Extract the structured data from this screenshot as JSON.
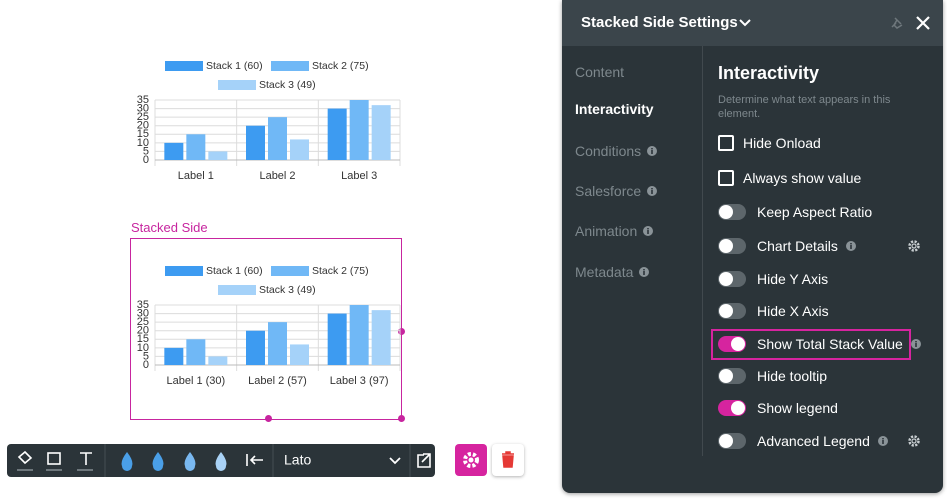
{
  "charts": [
    {
      "type": "bar",
      "categories": [
        "Label 1",
        "Label 2",
        "Label 3"
      ],
      "series": [
        {
          "name": "Stack 1 (60)",
          "color": "#3d9bf1",
          "values": [
            10,
            20,
            30
          ]
        },
        {
          "name": "Stack 2 (75)",
          "color": "#70b8f6",
          "values": [
            15,
            25,
            35
          ]
        },
        {
          "name": "Stack 3 (49)",
          "color": "#a5d2f9",
          "values": [
            5,
            12,
            32
          ]
        }
      ],
      "ylim": [
        0,
        35
      ],
      "yticks": [
        0,
        5,
        10,
        15,
        20,
        25,
        30,
        35
      ],
      "grid": true
    },
    {
      "type": "bar",
      "element_label": "Stacked Side",
      "categories": [
        "Label 1 (30)",
        "Label 2 (57)",
        "Label 3 (97)"
      ],
      "series": [
        {
          "name": "Stack 1 (60)",
          "color": "#3d9bf1",
          "values": [
            10,
            20,
            30
          ]
        },
        {
          "name": "Stack 2 (75)",
          "color": "#70b8f6",
          "values": [
            15,
            25,
            35
          ]
        },
        {
          "name": "Stack 3 (49)",
          "color": "#a5d2f9",
          "values": [
            5,
            12,
            32
          ]
        }
      ],
      "ylim": [
        0,
        35
      ],
      "yticks": [
        0,
        5,
        10,
        15,
        20,
        25,
        30,
        35
      ],
      "grid": true
    }
  ],
  "toolbar": {
    "font": "Lato"
  },
  "panel": {
    "title": "Stacked Side Settings",
    "nav": [
      {
        "label": "Content",
        "active": false,
        "info": false
      },
      {
        "label": "Interactivity",
        "active": true,
        "info": false
      },
      {
        "label": "Conditions",
        "active": false,
        "info": true
      },
      {
        "label": "Salesforce",
        "active": false,
        "info": true
      },
      {
        "label": "Animation",
        "active": false,
        "info": true
      },
      {
        "label": "Metadata",
        "active": false,
        "info": true
      }
    ],
    "heading": "Interactivity",
    "description": "Determine what text appears in this element.",
    "options": [
      {
        "label": "Hide Onload",
        "control": "checkbox",
        "on": false,
        "info": false,
        "gear": false,
        "highlighted": false
      },
      {
        "label": "Always show value",
        "control": "checkbox",
        "on": false,
        "info": false,
        "gear": false,
        "highlighted": false
      },
      {
        "label": "Keep Aspect Ratio",
        "control": "toggle",
        "on": false,
        "info": false,
        "gear": false,
        "highlighted": false
      },
      {
        "label": "Chart Details",
        "control": "toggle",
        "on": false,
        "info": true,
        "gear": true,
        "highlighted": false
      },
      {
        "label": "Hide Y Axis",
        "control": "toggle",
        "on": false,
        "info": false,
        "gear": false,
        "highlighted": false
      },
      {
        "label": "Hide X Axis",
        "control": "toggle",
        "on": false,
        "info": false,
        "gear": false,
        "highlighted": false
      },
      {
        "label": "Show Total Stack Value",
        "control": "toggle",
        "on": true,
        "info": true,
        "gear": false,
        "highlighted": true
      },
      {
        "label": "Hide tooltip",
        "control": "toggle",
        "on": false,
        "info": false,
        "gear": false,
        "highlighted": false
      },
      {
        "label": "Show legend",
        "control": "toggle",
        "on": true,
        "info": false,
        "gear": false,
        "highlighted": false
      },
      {
        "label": "Advanced Legend",
        "control": "toggle",
        "on": false,
        "info": true,
        "gear": true,
        "highlighted": false
      }
    ]
  }
}
